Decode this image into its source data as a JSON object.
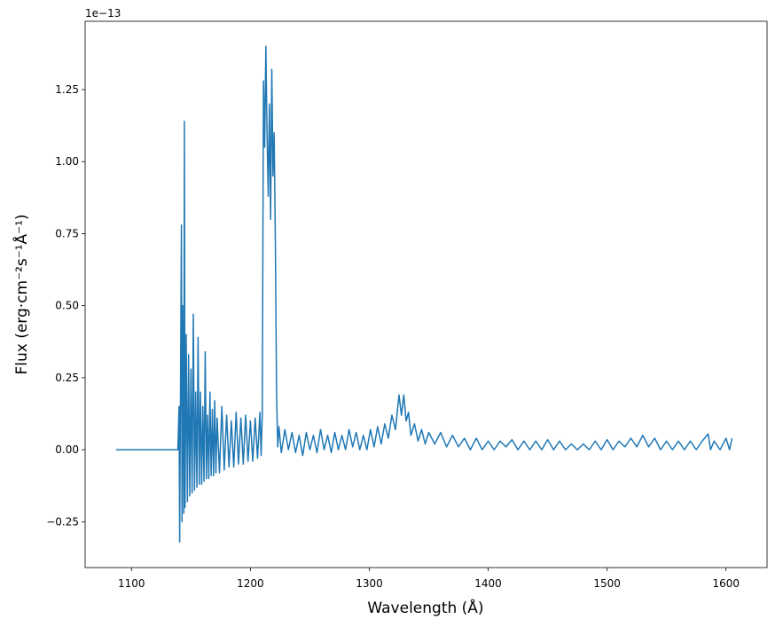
{
  "chart_data": {
    "type": "line",
    "y_offset_label": "1e−13",
    "xlabel": "Wavelength (Å)",
    "ylabel": "Flux (erg·cm⁻²s⁻¹Å⁻¹)",
    "color": "#1f77b4",
    "xlim": [
      1061,
      1634.5
    ],
    "ylim": [
      -0.409,
      1.487
    ],
    "xticks": [
      1100,
      1200,
      1300,
      1400,
      1500,
      1600
    ],
    "yticks": [
      {
        "value": -0.25,
        "label": "−0.25"
      },
      {
        "value": 0,
        "label": "0.00"
      },
      {
        "value": 0.25,
        "label": "0.25"
      },
      {
        "value": 0.5,
        "label": "0.50"
      },
      {
        "value": 0.75,
        "label": "0.75"
      },
      {
        "value": 1,
        "label": "1.00"
      },
      {
        "value": 1.25,
        "label": "1.25"
      }
    ],
    "x": [
      1087,
      1139,
      1140,
      1140.5,
      1141,
      1142,
      1142.5,
      1143,
      1144,
      1144.5,
      1145,
      1146,
      1147,
      1148,
      1149,
      1150,
      1151,
      1152,
      1153,
      1154,
      1155,
      1156,
      1157,
      1158,
      1159,
      1160,
      1161,
      1162,
      1163,
      1164,
      1165,
      1166,
      1167,
      1168,
      1169,
      1170,
      1171,
      1172,
      1174,
      1176,
      1178,
      1180,
      1182,
      1184,
      1186,
      1188,
      1190,
      1192,
      1194,
      1196,
      1198,
      1200,
      1202,
      1204,
      1206,
      1208,
      1209,
      1210,
      1211,
      1212,
      1213,
      1214,
      1215,
      1216,
      1217,
      1218,
      1219,
      1220,
      1221,
      1222,
      1223,
      1224,
      1226,
      1229,
      1232,
      1235,
      1238,
      1241,
      1244,
      1247,
      1250,
      1253,
      1256,
      1259,
      1262,
      1265,
      1268,
      1271,
      1274,
      1277,
      1280,
      1283,
      1286,
      1289,
      1292,
      1295,
      1298,
      1301,
      1304,
      1307,
      1310,
      1313,
      1316,
      1319,
      1322,
      1325,
      1327,
      1329,
      1331,
      1333,
      1335,
      1338,
      1341,
      1344,
      1347,
      1350,
      1355,
      1360,
      1365,
      1370,
      1375,
      1380,
      1385,
      1390,
      1395,
      1400,
      1405,
      1410,
      1415,
      1420,
      1425,
      1430,
      1435,
      1440,
      1445,
      1450,
      1455,
      1460,
      1465,
      1470,
      1475,
      1480,
      1485,
      1490,
      1495,
      1500,
      1505,
      1510,
      1515,
      1520,
      1525,
      1530,
      1535,
      1540,
      1545,
      1550,
      1555,
      1560,
      1565,
      1570,
      1575,
      1580,
      1585,
      1587,
      1590,
      1595,
      1600,
      1603,
      1605
    ],
    "values": [
      0,
      0,
      0.15,
      -0.32,
      0.05,
      0.78,
      -0.25,
      0.5,
      -0.22,
      1.14,
      -0.2,
      0.4,
      -0.18,
      0.33,
      -0.16,
      0.28,
      -0.15,
      0.47,
      -0.14,
      0.2,
      -0.13,
      0.39,
      -0.12,
      0.2,
      -0.12,
      0.15,
      -0.11,
      0.34,
      -0.1,
      0.12,
      -0.1,
      0.2,
      -0.09,
      0.14,
      -0.09,
      0.17,
      -0.08,
      0.11,
      -0.08,
      0.15,
      -0.07,
      0.12,
      -0.06,
      0.1,
      -0.06,
      0.13,
      -0.05,
      0.11,
      -0.05,
      0.12,
      -0.04,
      0.1,
      -0.04,
      0.11,
      -0.03,
      0.13,
      -0.02,
      0.12,
      1.28,
      1.05,
      1.4,
      1.1,
      0.88,
      1.2,
      0.8,
      1.32,
      0.95,
      1.1,
      0.72,
      0.2,
      0.01,
      0.08,
      -0.01,
      0.07,
      0,
      0.06,
      -0.01,
      0.05,
      -0.02,
      0.06,
      0,
      0.05,
      -0.01,
      0.07,
      0,
      0.05,
      -0.01,
      0.06,
      0,
      0.05,
      0,
      0.07,
      0.01,
      0.06,
      0,
      0.05,
      0,
      0.07,
      0.01,
      0.08,
      0.02,
      0.09,
      0.04,
      0.12,
      0.07,
      0.19,
      0.12,
      0.19,
      0.1,
      0.13,
      0.05,
      0.09,
      0.03,
      0.07,
      0.02,
      0.06,
      0.02,
      0.06,
      0.01,
      0.05,
      0.01,
      0.04,
      0,
      0.04,
      0,
      0.03,
      0,
      0.03,
      0.01,
      0.035,
      0,
      0.03,
      0,
      0.03,
      0,
      0.035,
      0,
      0.03,
      0,
      0.02,
      0,
      0.02,
      0,
      0.03,
      0,
      0.035,
      0,
      0.03,
      0.01,
      0.04,
      0.01,
      0.05,
      0.01,
      0.04,
      0,
      0.03,
      0,
      0.03,
      0,
      0.03,
      0,
      0.03,
      0.055,
      0,
      0.03,
      0,
      0.04,
      0,
      0.04
    ]
  }
}
